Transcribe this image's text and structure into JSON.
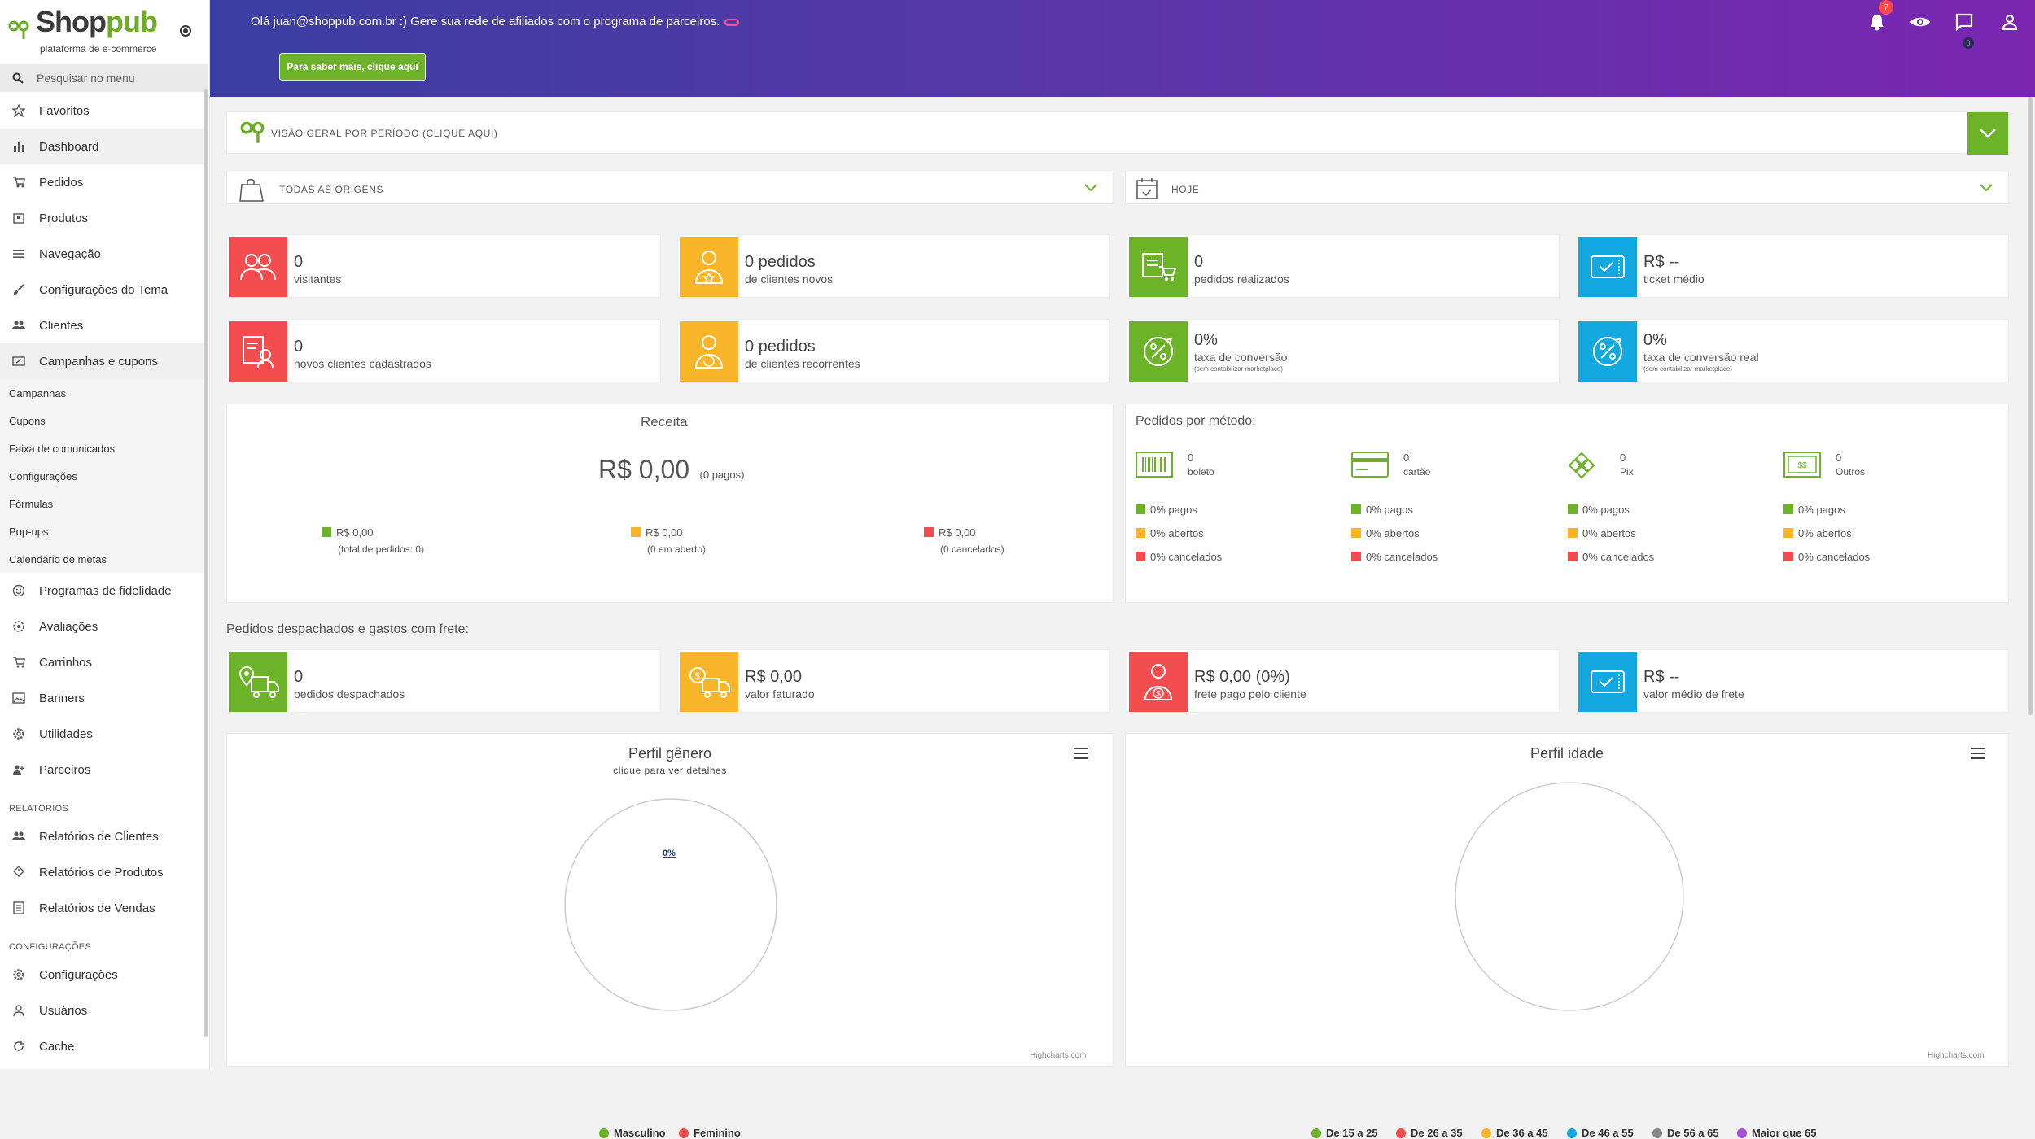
{
  "brand": {
    "name_a": "Shop",
    "name_b": "pub",
    "tagline": "plataforma de e-commerce"
  },
  "search": {
    "placeholder": "Pesquisar no menu"
  },
  "sidebar": {
    "items": [
      {
        "label": "Favoritos",
        "icon": "star-icon"
      },
      {
        "label": "Dashboard",
        "icon": "bar-chart-icon"
      },
      {
        "label": "Pedidos",
        "icon": "cart-icon"
      },
      {
        "label": "Produtos",
        "icon": "box-icon"
      },
      {
        "label": "Navegação",
        "icon": "menu-icon"
      },
      {
        "label": "Configurações do Tema",
        "icon": "brush-icon"
      },
      {
        "label": "Clientes",
        "icon": "users-icon"
      },
      {
        "label": "Campanhas e cupons",
        "icon": "ticket-icon"
      }
    ],
    "sub_items": [
      "Campanhas",
      "Cupons",
      "Faixa de comunicados",
      "Configurações",
      "Fórmulas",
      "Pop-ups",
      "Calendário de metas"
    ],
    "items2": [
      {
        "label": "Programas de fidelidade",
        "icon": "smile-icon"
      },
      {
        "label": "Avaliações",
        "icon": "gear-star-icon"
      },
      {
        "label": "Carrinhos",
        "icon": "cart-icon"
      },
      {
        "label": "Banners",
        "icon": "image-icon"
      },
      {
        "label": "Utilidades",
        "icon": "gear-icon"
      },
      {
        "label": "Parceiros",
        "icon": "partner-icon"
      }
    ],
    "section_reports": "RELATÓRIOS",
    "reports": [
      {
        "label": "Relatórios de Clientes",
        "icon": "users-icon"
      },
      {
        "label": "Relatórios de Produtos",
        "icon": "tags-icon"
      },
      {
        "label": "Relatórios de Vendas",
        "icon": "list-icon"
      }
    ],
    "section_settings": "CONFIGURAÇÕES",
    "settings": [
      {
        "label": "Configurações",
        "icon": "gear-icon"
      },
      {
        "label": "Usuários",
        "icon": "user-icon"
      },
      {
        "label": "Cache",
        "icon": "refresh-icon"
      }
    ]
  },
  "banner": {
    "message": "Olá juan@shoppub.com.br :) Gere sua rede de afiliados com o programa de parceiros.",
    "button": "Para saber mais, clique aqui",
    "notif_count": "7",
    "chat_count": "0"
  },
  "overview": {
    "label": "VISÃO GERAL POR PERÍODO (CLIQUE AQUI)"
  },
  "filters": {
    "origin": "TODAS AS ORIGENS",
    "period": "HOJE"
  },
  "stats": [
    {
      "value": "0",
      "label": "visitantes",
      "note": "",
      "color": "#f34d4f"
    },
    {
      "value": "0 pedidos",
      "label": "de clientes novos",
      "note": "",
      "color": "#f9b529"
    },
    {
      "value": "0",
      "label": "pedidos realizados",
      "note": "",
      "color": "#6cb32a"
    },
    {
      "value": "R$ --",
      "label": "ticket médio",
      "note": "",
      "color": "#14a8e1"
    },
    {
      "value": "0",
      "label": "novos clientes cadastrados",
      "note": "",
      "color": "#f34d4f"
    },
    {
      "value": "0 pedidos",
      "label": "de clientes recorrentes",
      "note": "",
      "color": "#f9b529"
    },
    {
      "value": "0%",
      "label": "taxa de conversão",
      "note": "(sem contabilizar marketplace)",
      "color": "#6cb32a"
    },
    {
      "value": "0%",
      "label": "taxa de conversão real",
      "note": "(sem contabilizar marketplace)",
      "color": "#14a8e1"
    }
  ],
  "receita": {
    "title": "Receita",
    "value": "R$ 0,00",
    "paid": "(0 pagos)",
    "legend": [
      {
        "value": "R$ 0,00",
        "note": "(total de pedidos: 0)",
        "color": "#6cb32a"
      },
      {
        "value": "R$ 0,00",
        "note": "(0 em aberto)",
        "color": "#f9b529"
      },
      {
        "value": "R$ 0,00",
        "note": "(0 cancelados)",
        "color": "#f34d4f"
      }
    ]
  },
  "pedidos_metodo": {
    "title": "Pedidos por método:",
    "methods": [
      {
        "count": "0",
        "label": "boleto",
        "icon": "barcode-icon"
      },
      {
        "count": "0",
        "label": "cartão",
        "icon": "card-icon"
      },
      {
        "count": "0",
        "label": "Pix",
        "icon": "pix-icon"
      },
      {
        "count": "0",
        "label": "Outros",
        "icon": "cash-icon"
      }
    ],
    "rows": [
      "0% pagos",
      "0% abertos",
      "0% cancelados"
    ],
    "row_colors": [
      "#6cb32a",
      "#f9b529",
      "#f34d4f"
    ]
  },
  "despachados": {
    "title": "Pedidos despachados e gastos com frete:",
    "stats": [
      {
        "value": "0",
        "label": "pedidos despachados",
        "color": "#6cb32a"
      },
      {
        "value": "R$ 0,00",
        "label": "valor faturado",
        "color": "#f9b529"
      },
      {
        "value": "R$ 0,00 (0%)",
        "label": "frete pago pelo cliente",
        "color": "#f34d4f"
      },
      {
        "value": "R$ --",
        "label": "valor médio de frete",
        "color": "#14a8e1"
      }
    ]
  },
  "genero": {
    "title": "Perfil gênero",
    "subtitle": "clique para ver detalhes",
    "pct_label": "0%",
    "legend": [
      {
        "name": "Masculino",
        "color": "#6cb32a"
      },
      {
        "name": "Feminino",
        "color": "#f34d4f"
      }
    ],
    "credit": "Highcharts.com"
  },
  "idade": {
    "title": "Perfil idade",
    "legend": [
      {
        "name": "De 15 a 25",
        "color": "#6cb32a"
      },
      {
        "name": "De 26 a 35",
        "color": "#f34d4f"
      },
      {
        "name": "De 36 a 45",
        "color": "#f9b529"
      },
      {
        "name": "De 46 a 55",
        "color": "#14a8e1"
      },
      {
        "name": "De 56 a 65",
        "color": "#888888"
      },
      {
        "name": "Maior que 65",
        "color": "#a64fd9"
      }
    ],
    "credit": "Highcharts.com"
  }
}
